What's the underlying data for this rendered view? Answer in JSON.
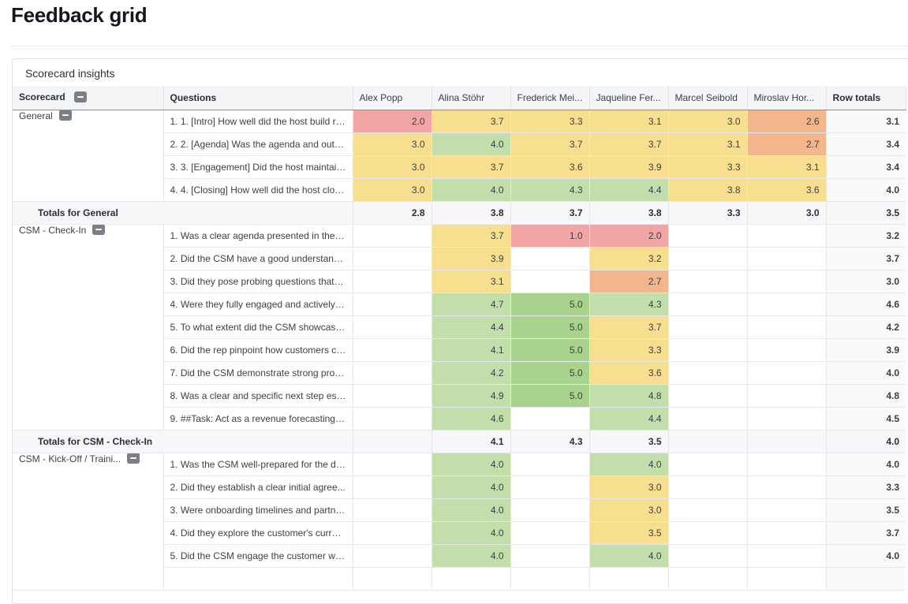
{
  "page": {
    "title": "Feedback grid"
  },
  "panel": {
    "title": "Scorecard insights"
  },
  "columns": {
    "scorecard": "Scorecard",
    "questions": "Questions",
    "people": [
      "Alex Popp",
      "Alina Stöhr",
      "Frederick Mei...",
      "Jaqueline Fer...",
      "Marcel Seibold",
      "Miroslav Hor..."
    ],
    "row_totals": "Row totals"
  },
  "colors": {
    "red": "#f2a5a5",
    "orange": "#f1b68c",
    "yellow": "#f8de8f",
    "light_green": "#c2deaa",
    "green": "#a9d38c"
  },
  "groups": [
    {
      "name": "General",
      "rows": [
        {
          "question": "1. 1. [Intro] How well did the host build ra...",
          "scores": [
            "2.0",
            "3.7",
            "3.3",
            "3.1",
            "3.0",
            "2.6"
          ],
          "total": "3.1"
        },
        {
          "question": "2. 2. [Agenda] Was the agenda and outco...",
          "scores": [
            "3.0",
            "4.0",
            "3.7",
            "3.7",
            "3.1",
            "2.7"
          ],
          "total": "3.4"
        },
        {
          "question": "3. 3. [Engagement] Did the host maintain ...",
          "scores": [
            "3.0",
            "3.7",
            "3.6",
            "3.9",
            "3.3",
            "3.1"
          ],
          "total": "3.4"
        },
        {
          "question": "4. 4. [Closing] How well did the host close...",
          "scores": [
            "3.0",
            "4.0",
            "4.3",
            "4.4",
            "3.8",
            "3.6"
          ],
          "total": "4.0"
        }
      ],
      "totals_label": "Totals for General",
      "totals": [
        "2.8",
        "3.8",
        "3.7",
        "3.8",
        "3.3",
        "3.0"
      ],
      "grand_total": "3.5"
    },
    {
      "name": "CSM - Check-In",
      "rows": [
        {
          "question": "1. Was a clear agenda presented in the be...",
          "scores": [
            "",
            "3.7",
            "1.0",
            "2.0",
            "",
            ""
          ],
          "total": "3.2"
        },
        {
          "question": "2. Did the CSM have a good understandin...",
          "scores": [
            "",
            "3.9",
            "",
            "3.2",
            "",
            ""
          ],
          "total": "3.7"
        },
        {
          "question": "3. Did they pose probing questions that u...",
          "scores": [
            "",
            "3.1",
            "",
            "2.7",
            "",
            ""
          ],
          "total": "3.0"
        },
        {
          "question": "4. Were they fully engaged and actively li...",
          "scores": [
            "",
            "4.7",
            "5.0",
            "4.3",
            "",
            ""
          ],
          "total": "4.6"
        },
        {
          "question": "5. To what extent did the CSM showcase ...",
          "scores": [
            "",
            "4.4",
            "5.0",
            "3.7",
            "",
            ""
          ],
          "total": "4.2"
        },
        {
          "question": "6. Did the rep pinpoint how customers co...",
          "scores": [
            "",
            "4.1",
            "5.0",
            "3.3",
            "",
            ""
          ],
          "total": "3.9"
        },
        {
          "question": "7. Did the CSM demonstrate strong probl...",
          "scores": [
            "",
            "4.2",
            "5.0",
            "3.6",
            "",
            ""
          ],
          "total": "4.0"
        },
        {
          "question": "8. Was a clear and specific next step esta...",
          "scores": [
            "",
            "4.9",
            "5.0",
            "4.8",
            "",
            ""
          ],
          "total": "4.8"
        },
        {
          "question": "9. ##Task: Act as a revenue forecasting to...",
          "scores": [
            "",
            "4.6",
            "",
            "4.4",
            "",
            ""
          ],
          "total": "4.5"
        }
      ],
      "totals_label": "Totals for CSM - Check-In",
      "totals": [
        "",
        "4.1",
        "4.3",
        "3.5",
        "",
        ""
      ],
      "grand_total": "4.0"
    },
    {
      "name": "CSM - Kick-Off / Traini...",
      "rows": [
        {
          "question": "1. Was the CSM well-prepared for the dis...",
          "scores": [
            "",
            "4.0",
            "",
            "4.0",
            "",
            ""
          ],
          "total": "4.0"
        },
        {
          "question": "2. Did they establish a clear initial agree...",
          "scores": [
            "",
            "4.0",
            "",
            "3.0",
            "",
            ""
          ],
          "total": "3.3"
        },
        {
          "question": "3. Were onboarding timelines and partne...",
          "scores": [
            "",
            "4.0",
            "",
            "3.0",
            "",
            ""
          ],
          "total": "3.5"
        },
        {
          "question": "4. Did they explore the customer's curren...",
          "scores": [
            "",
            "4.0",
            "",
            "3.5",
            "",
            ""
          ],
          "total": "3.7"
        },
        {
          "question": "5. Did the CSM engage the customer wit...",
          "scores": [
            "",
            "4.0",
            "",
            "4.0",
            "",
            ""
          ],
          "total": "4.0"
        },
        {
          "question": "",
          "scores": [
            "",
            "",
            "",
            "",
            "",
            ""
          ],
          "total": ""
        }
      ]
    }
  ]
}
